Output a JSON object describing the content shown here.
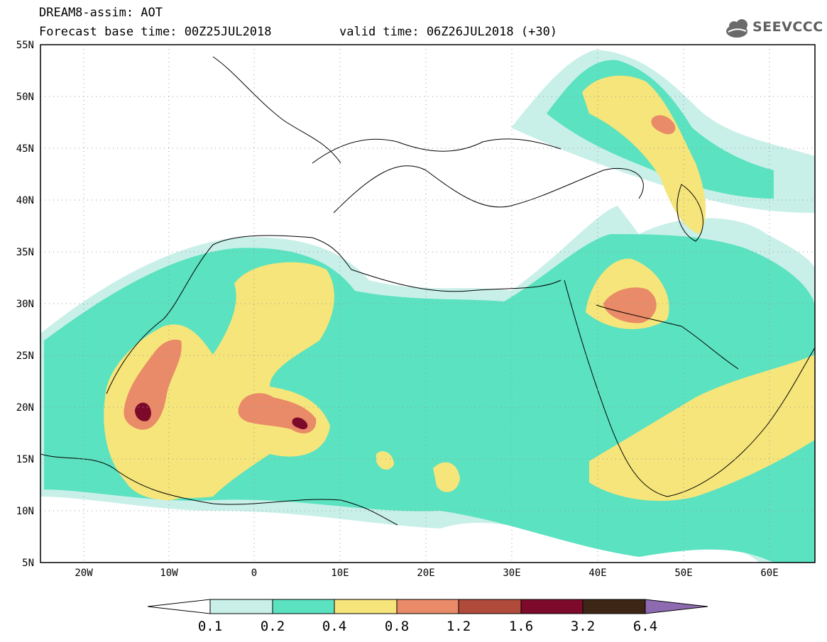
{
  "header": {
    "title": "DREAM8-assim: AOT",
    "base_time": "Forecast base time: 00Z25JUL2018",
    "valid_time": "valid time: 06Z26JUL2018 (+30)"
  },
  "logo": {
    "text": "SEEVCCC",
    "icon": "cloud-icon",
    "color": "#5f5f5f"
  },
  "map": {
    "lat_range": [
      5,
      55
    ],
    "lon_range": [
      -25,
      65
    ],
    "lat_ticks": [
      "55N",
      "50N",
      "45N",
      "40N",
      "35N",
      "30N",
      "25N",
      "20N",
      "15N",
      "10N",
      "5N"
    ],
    "lon_ticks": [
      "20W",
      "10W",
      "0",
      "10E",
      "20E",
      "30E",
      "40E",
      "50E",
      "60E"
    ]
  },
  "legend": {
    "labels": [
      "0.1",
      "0.2",
      "0.4",
      "0.8",
      "1.2",
      "1.6",
      "3.2",
      "6.4"
    ],
    "colors": [
      "#ffffff",
      "#c8f0e8",
      "#5be2c0",
      "#f6e57a",
      "#e98a68",
      "#b04a3b",
      "#7d0a2a",
      "#3d2616",
      "#8e6bb0"
    ]
  }
}
